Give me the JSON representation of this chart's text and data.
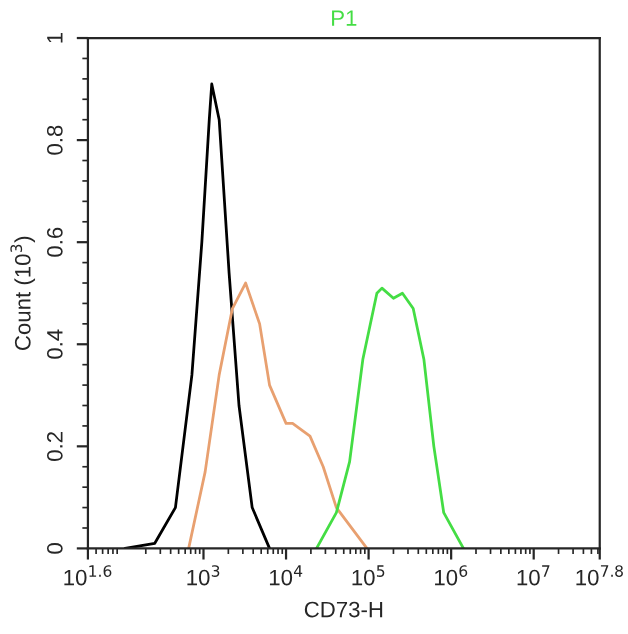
{
  "chart_data": {
    "type": "line",
    "xlabel": "CD73-H",
    "ylabel": "Count (10$^{3}$)",
    "log": "x",
    "grid": false,
    "legend": false,
    "marker": "none",
    "line_style": "solid",
    "xlim": [
      39.81,
      63095734
    ],
    "xticks": [
      {
        "value": 39.81,
        "label": "10$^{1.6}$"
      },
      {
        "value": 1000,
        "label": "10$^{3}$"
      },
      {
        "value": 10000,
        "label": "10$^{4}$"
      },
      {
        "value": 100000,
        "label": "10$^{5}$"
      },
      {
        "value": 1000000,
        "label": "10$^{6}$"
      },
      {
        "value": 10000000,
        "label": "10$^{7}$"
      },
      {
        "value": 63095734,
        "label": "10$^{7.8}$"
      }
    ],
    "ylim": [
      0,
      1
    ],
    "yticks": [
      0,
      0.2,
      0.4,
      0.6,
      0.8,
      1
    ],
    "series": [
      {
        "color": "#000000",
        "x": [
          112,
          257,
          457,
          724,
          955,
          1175,
          1259,
          1549,
          2042,
          2692,
          3890,
          6310
        ],
        "values": [
          0,
          0.01,
          0.08,
          0.34,
          0.6,
          0.84,
          0.91,
          0.84,
          0.54,
          0.28,
          0.08,
          0
        ]
      },
      {
        "color": "#e8a070",
        "x": [
          661,
          1047,
          1549,
          2239,
          3236,
          4786,
          6310,
          10000,
          12000,
          19500,
          28200,
          40700,
          95500
        ],
        "values": [
          0,
          0.15,
          0.34,
          0.47,
          0.52,
          0.44,
          0.32,
          0.245,
          0.245,
          0.22,
          0.16,
          0.08,
          0
        ]
      },
      {
        "name": "P1",
        "color": "#44dd44",
        "x": [
          23400,
          40700,
          58900,
          85100,
          126000,
          145000,
          200000,
          257000,
          347000,
          468000,
          617000,
          813000,
          1410000
        ],
        "values": [
          0,
          0.07,
          0.17,
          0.37,
          0.5,
          0.51,
          0.49,
          0.5,
          0.47,
          0.37,
          0.2,
          0.07,
          0
        ]
      }
    ]
  }
}
